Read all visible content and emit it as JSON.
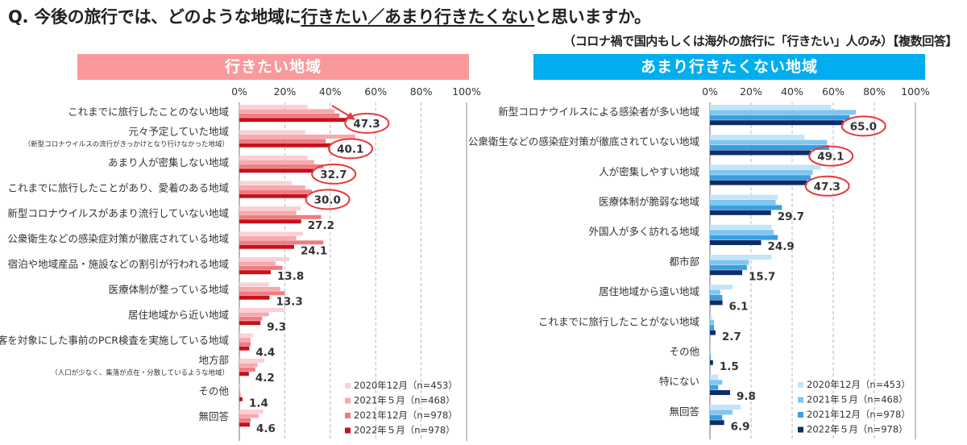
{
  "title_q": "Q.",
  "title_pre": "今後の旅行では、どのような地域に",
  "title_u1": "行きたい／あまり行きたくない",
  "title_post": "と思いますか。",
  "subtitle": "（コロナ禍で国内もしくは海外の旅行に「行きたい」人のみ）【複数回答】",
  "colors": {
    "left_series": [
      "#fbd0d4",
      "#f6a9ad",
      "#ee7c82",
      "#c8101b"
    ],
    "right_series": [
      "#c3e4fa",
      "#7ec7f2",
      "#3a9fe0",
      "#0d2d6a"
    ],
    "left_banner": "#f9999c",
    "right_banner": "#00aeef",
    "highlight": "#e8393b"
  },
  "chart_data": [
    {
      "type": "bar",
      "orientation": "horizontal",
      "title": "行きたい地域",
      "xlim": [
        0,
        100
      ],
      "ticks": [
        "0%",
        "20%",
        "40%",
        "60%",
        "80%",
        "100%"
      ],
      "categories": [
        [
          "これまでに旅行したことのない地域"
        ],
        [
          "元々予定していた地域",
          "（新型コロナウイルスの流行がきっかけとなり行けなかった地域）"
        ],
        [
          "あまり人が密集しない地域"
        ],
        [
          "これまでに旅行したことがあり、愛着のある地域"
        ],
        [
          "新型コロナウイルスがあまり流行していない地域"
        ],
        [
          "公衆衛生などの感染症対策が徹底されている地域"
        ],
        [
          "宿泊や地域産品・施設などの割引が行われる地域"
        ],
        [
          "医療体制が整っている地域"
        ],
        [
          "居住地域から近い地域"
        ],
        [
          "訪問客を対象にした事前のPCR検査を実施している地域"
        ],
        [
          "地方部",
          "（人口が少なく、集落が点在・分散しているような地域）"
        ],
        [
          "その他"
        ],
        [
          "無回答"
        ]
      ],
      "series": [
        {
          "name": "2020年12月（n=453）",
          "values": [
            30,
            29,
            30,
            23,
            27,
            28,
            22,
            13,
            20,
            6,
            11,
            0.5,
            10.5
          ]
        },
        {
          "name": "2021年５月（n=468）",
          "values": [
            42,
            51,
            33,
            29,
            25,
            25,
            16,
            18,
            13,
            5,
            8,
            0.4,
            8.5
          ]
        },
        {
          "name": "2021年12月（n=978）",
          "values": [
            44,
            38,
            37,
            32,
            36,
            37,
            19,
            20,
            10,
            5,
            7,
            0.5,
            5
          ]
        },
        {
          "name": "2022年５月（n=978）",
          "values": [
            47.3,
            40.1,
            32.7,
            30.0,
            27.2,
            24.1,
            13.8,
            13.3,
            9.3,
            4.4,
            4.2,
            1.4,
            4.6
          ]
        }
      ],
      "data_labels": [
        "47.3",
        "40.1",
        "32.7",
        "30.0",
        "27.2",
        "24.1",
        "13.8",
        "13.3",
        "9.3",
        "4.4",
        "4.2",
        "1.4",
        "4.6"
      ],
      "highlighted": [
        0,
        1,
        2,
        3
      ],
      "legend_position": "bottom-right",
      "grid": true
    },
    {
      "type": "bar",
      "orientation": "horizontal",
      "title": "あまり行きたくない地域",
      "xlim": [
        0,
        100
      ],
      "ticks": [
        "0%",
        "20%",
        "40%",
        "60%",
        "80%",
        "100%"
      ],
      "categories": [
        [
          "新型コロナウイルスによる感染者が多い地域"
        ],
        [
          "公衆衛生などの感染症対策が徹底されていない地域"
        ],
        [
          "人が密集しやすい地域"
        ],
        [
          "医療体制が脆弱な地域"
        ],
        [
          "外国人が多く訪れる地域"
        ],
        [
          "都市部"
        ],
        [
          "居住地域から遠い地域"
        ],
        [
          "これまでに旅行したことがない地域"
        ],
        [
          "その他"
        ],
        [
          "特にない"
        ],
        [
          "無回答"
        ]
      ],
      "series": [
        {
          "name": "2020年12月（n=453）",
          "values": [
            59,
            46,
            54,
            33,
            30,
            30,
            11,
            1,
            0.5,
            4,
            15
          ]
        },
        {
          "name": "2021年５月（n=468）",
          "values": [
            71,
            57,
            50,
            32,
            31,
            19,
            5,
            2,
            0.3,
            6,
            11
          ]
        },
        {
          "name": "2021年12月（n=978）",
          "values": [
            68,
            58,
            49,
            35,
            33,
            18,
            6,
            2,
            0.4,
            4,
            6
          ]
        },
        {
          "name": "2022年５月（n=978）",
          "values": [
            65.0,
            49.1,
            47.3,
            29.7,
            24.9,
            15.7,
            6.1,
            2.7,
            1.5,
            9.8,
            6.9
          ]
        }
      ],
      "data_labels": [
        "65.0",
        "49.1",
        "47.3",
        "29.7",
        "24.9",
        "15.7",
        "6.1",
        "2.7",
        "1.5",
        "9.8",
        "6.9"
      ],
      "highlighted": [
        0,
        1,
        2
      ],
      "legend_position": "bottom-right",
      "grid": true
    }
  ]
}
